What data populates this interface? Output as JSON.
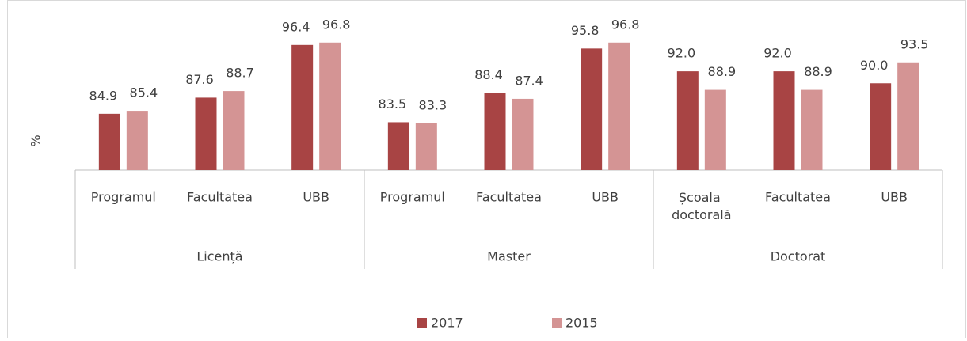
{
  "chart_data": {
    "type": "bar",
    "ylabel": "%",
    "categories": [
      "Programul",
      "Facultatea",
      "UBB",
      "Programul",
      "Facultatea",
      "UBB",
      "Școala doctorală",
      "Facultatea",
      "UBB"
    ],
    "category_groups": [
      "Licență",
      "Master",
      "Doctorat"
    ],
    "series": [
      {
        "name": "2017",
        "color": "#a84444",
        "values": [
          84.9,
          87.6,
          96.4,
          83.5,
          88.4,
          95.8,
          92,
          92,
          90
        ],
        "value_labels": [
          "84.9",
          "87.6",
          "96.4",
          "83.5",
          "88.4",
          "95.8",
          "92.0",
          "92.0",
          "90.0"
        ]
      },
      {
        "name": "2015",
        "color": "#d49494",
        "values": [
          85.4,
          88.7,
          96.8,
          83.3,
          87.4,
          96.8,
          88.9,
          88.9,
          93.5
        ],
        "value_labels": [
          "85.4",
          "88.7",
          "96.8",
          "83.3",
          "87.4",
          "96.8",
          "88.9",
          "88.9",
          "93.5"
        ]
      }
    ],
    "ylim": [
      75.5,
      101
    ],
    "legend": "bottom"
  }
}
